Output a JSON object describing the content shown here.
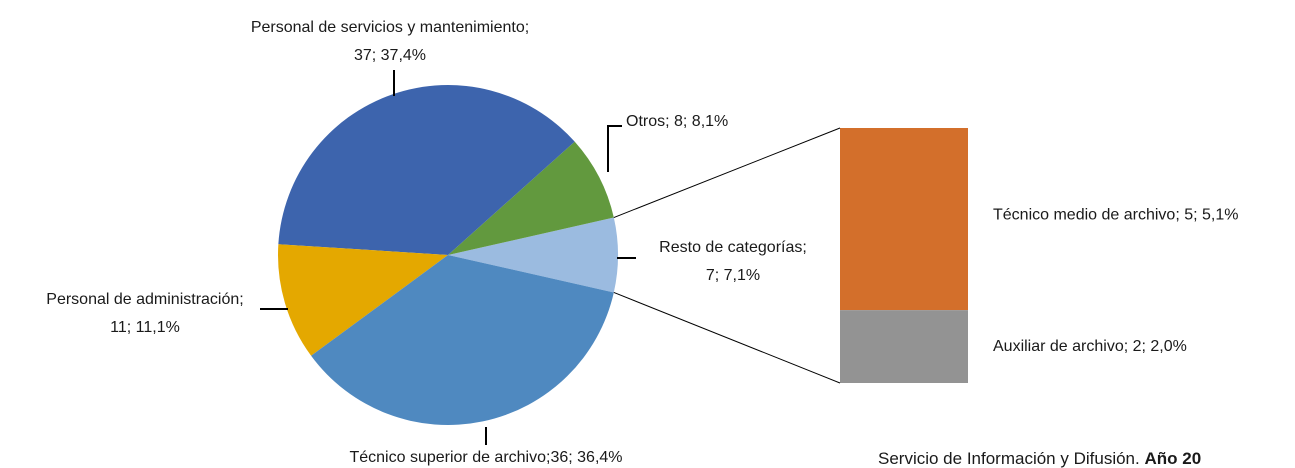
{
  "chart_data": {
    "type": "pie-of-bar",
    "categories": [
      "Resto de categorías;",
      "Otros;",
      "Personal de servicios y mantenimiento;",
      "Personal de administración;",
      "Técnico superior de archivo;"
    ],
    "values": [
      7,
      8,
      37,
      11,
      36
    ],
    "value_labels": [
      [
        "Resto de categorías;",
        "7; 7,1%"
      ],
      [
        "Otros; 8; 8,1%"
      ],
      [
        "Personal de servicios y mantenimiento;",
        "37; 37,4%"
      ],
      [
        "Personal de administración;",
        "11; 11,1%"
      ],
      [
        "Técnico superior de archivo;36; 36,4%"
      ]
    ],
    "colors": [
      "#9bbbe0",
      "#62993e",
      "#3d64ad",
      "#e4a800",
      "#4f89c0"
    ],
    "bar": {
      "categories": [
        "Técnico medio de archivo;",
        "Auxiliar de archivo;"
      ],
      "values": [
        5,
        2
      ],
      "value_labels": [
        "Técnico medio de archivo; 5; 5,1%",
        "Auxiliar de archivo; 2; 2,0%"
      ],
      "colors": [
        "#d36f2b",
        "#939393"
      ]
    },
    "source": "Servicio de Información y Difusión.",
    "source_bold": "Año 20"
  }
}
